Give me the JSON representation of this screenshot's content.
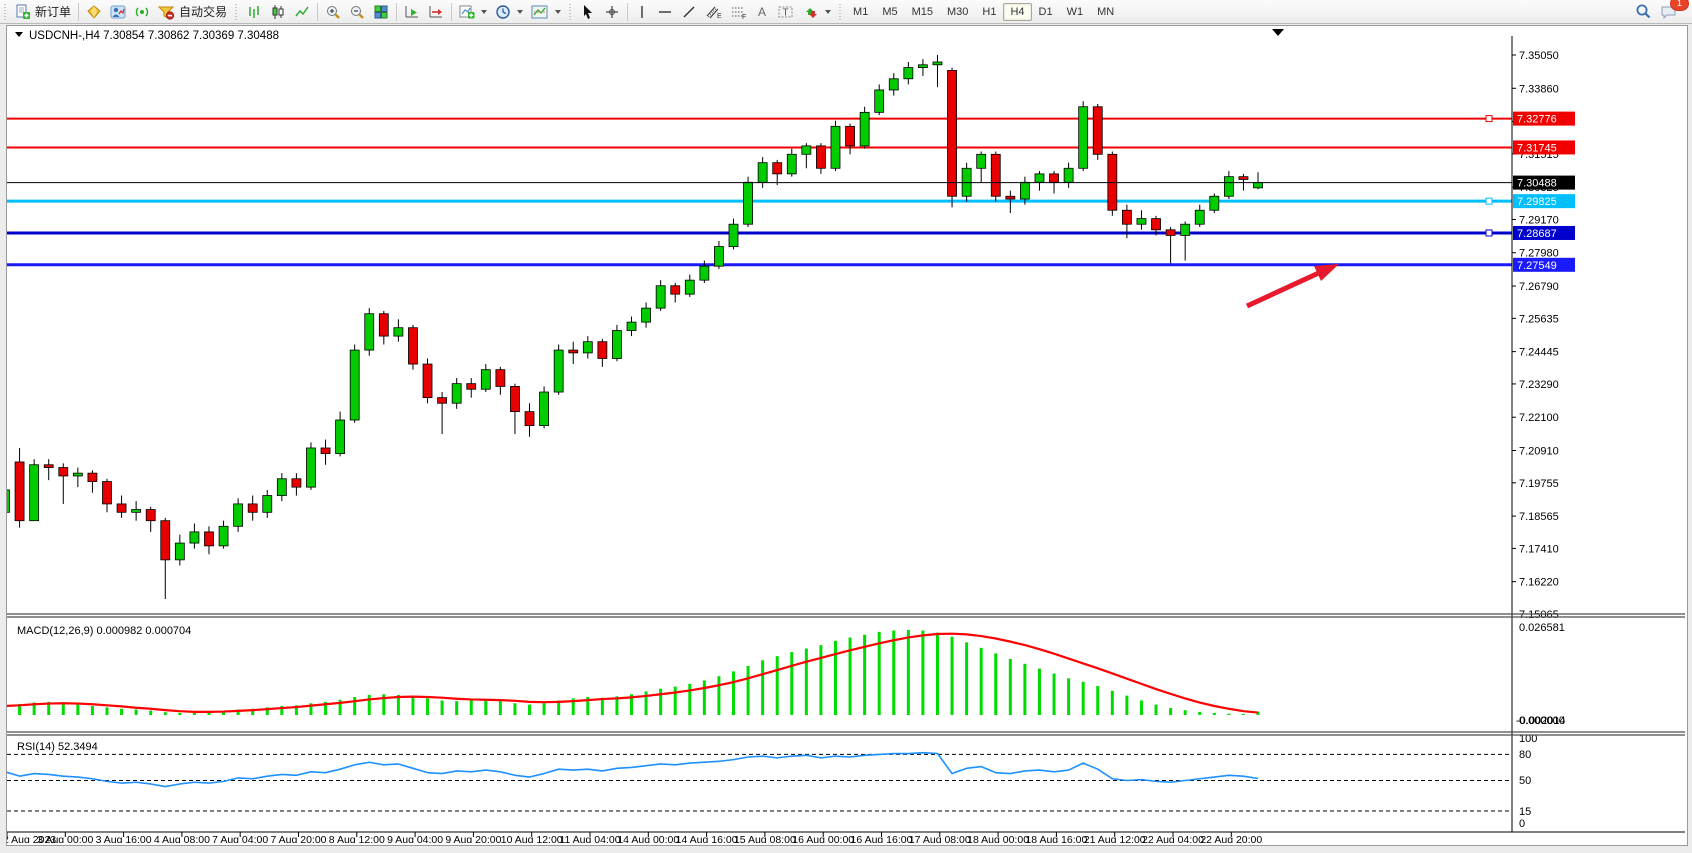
{
  "toolbar": {
    "new_order_label": "新订单",
    "auto_trading_label": "自动交易",
    "timeframes": [
      "M1",
      "M5",
      "M15",
      "M30",
      "H1",
      "H4",
      "D1",
      "W1",
      "MN"
    ],
    "active_timeframe": "H4",
    "notification_count": "1"
  },
  "chart": {
    "title_symbol": "USDCNH-,H4",
    "title_ohlc": "7.30854 7.30862 7.30369 7.30488",
    "current_price": {
      "label": "7.30488",
      "price": 7.30488,
      "color": "#000000"
    },
    "price_axis_ticks": [
      "7.35050",
      "7.33860",
      "7.32670",
      "7.31515",
      "7.30325",
      "7.29170",
      "7.27980",
      "7.26790",
      "7.25635",
      "7.24445",
      "7.23290",
      "7.22100",
      "7.20910",
      "7.19755",
      "7.18565",
      "7.17410",
      "7.16220",
      "7.15065"
    ],
    "hlines": [
      {
        "label": "7.32776",
        "price": 7.32776,
        "color": "#f00000",
        "width": 2,
        "handle": true
      },
      {
        "label": "7.31745",
        "price": 7.31745,
        "color": "#f00000",
        "width": 2,
        "handle": false
      },
      {
        "label": "7.29825",
        "price": 7.29825,
        "color": "#00bfff",
        "width": 3,
        "handle": true
      },
      {
        "label": "7.28687",
        "price": 7.28687,
        "color": "#0000cd",
        "width": 3,
        "handle": true
      },
      {
        "label": "7.27549",
        "price": 7.27549,
        "color": "#1a1aff",
        "width": 3,
        "handle": false
      }
    ],
    "annotations": [
      {
        "type": "arrow",
        "color": "#e8192c",
        "points_to": "7.27549"
      }
    ]
  },
  "macd": {
    "label": "MACD(12,26,9)",
    "value_main": "0.000982",
    "value_signal": "0.000704",
    "axis_max": "0.026581",
    "axis_zero": "0.000000",
    "axis_min": "-0.002014"
  },
  "rsi": {
    "label": "RSI(14)",
    "value": "52.3494",
    "axis_labels": [
      "100",
      "80",
      "50",
      "15",
      "0"
    ],
    "dashed_levels": [
      80,
      50,
      15
    ]
  },
  "time_axis": [
    "2 Aug 2023",
    "3 Aug 00:00",
    "3 Aug 16:00",
    "4 Aug 08:00",
    "7 Aug 04:00",
    "7 Aug 20:00",
    "8 Aug 12:00",
    "9 Aug 04:00",
    "9 Aug 20:00",
    "10 Aug 12:00",
    "11 Aug 04:00",
    "14 Aug 00:00",
    "14 Aug 16:00",
    "15 Aug 08:00",
    "16 Aug 00:00",
    "16 Aug 16:00",
    "17 Aug 08:00",
    "18 Aug 00:00",
    "18 Aug 16:00",
    "21 Aug 12:00",
    "22 Aug 04:00",
    "22 Aug 20:00"
  ],
  "chart_data": [
    {
      "type": "candlestick",
      "symbol": "USDCNH",
      "timeframe": "H4",
      "title": "USDCNH-,H4",
      "x_labels_every_n_bars": 4,
      "ylim": [
        7.15065,
        7.3505
      ],
      "ohlc": [
        [
          7.187,
          7.1975,
          7.178,
          7.195
        ],
        [
          7.205,
          7.21,
          7.1815,
          7.184
        ],
        [
          7.184,
          7.206,
          7.184,
          7.204
        ],
        [
          7.204,
          7.206,
          7.1985,
          7.203
        ],
        [
          7.203,
          7.2045,
          7.19,
          7.2
        ],
        [
          7.2,
          7.203,
          7.196,
          7.201
        ],
        [
          7.201,
          7.202,
          7.194,
          7.198
        ],
        [
          7.198,
          7.199,
          7.187,
          7.19
        ],
        [
          7.19,
          7.193,
          7.185,
          7.187
        ],
        [
          7.187,
          7.191,
          7.184,
          7.188
        ],
        [
          7.188,
          7.189,
          7.18,
          7.184
        ],
        [
          7.184,
          7.185,
          7.156,
          7.17
        ],
        [
          7.17,
          7.179,
          7.168,
          7.176
        ],
        [
          7.176,
          7.183,
          7.174,
          7.18
        ],
        [
          7.18,
          7.182,
          7.172,
          7.175
        ],
        [
          7.175,
          7.184,
          7.174,
          7.182
        ],
        [
          7.182,
          7.192,
          7.18,
          7.19
        ],
        [
          7.19,
          7.193,
          7.184,
          7.187
        ],
        [
          7.187,
          7.195,
          7.185,
          7.193
        ],
        [
          7.193,
          7.201,
          7.191,
          7.199
        ],
        [
          7.199,
          7.201,
          7.193,
          7.196
        ],
        [
          7.196,
          7.212,
          7.195,
          7.21
        ],
        [
          7.21,
          7.213,
          7.204,
          7.208
        ],
        [
          7.208,
          7.223,
          7.207,
          7.22
        ],
        [
          7.22,
          7.247,
          7.219,
          7.245
        ],
        [
          7.245,
          7.26,
          7.243,
          7.258
        ],
        [
          7.258,
          7.259,
          7.247,
          7.25
        ],
        [
          7.25,
          7.256,
          7.248,
          7.253
        ],
        [
          7.253,
          7.254,
          7.238,
          7.24
        ],
        [
          7.24,
          7.242,
          7.226,
          7.228
        ],
        [
          7.228,
          7.23,
          7.215,
          7.226
        ],
        [
          7.226,
          7.235,
          7.224,
          7.233
        ],
        [
          7.233,
          7.235,
          7.228,
          7.231
        ],
        [
          7.231,
          7.24,
          7.23,
          7.238
        ],
        [
          7.238,
          7.239,
          7.229,
          7.232
        ],
        [
          7.232,
          7.233,
          7.215,
          7.223
        ],
        [
          7.223,
          7.226,
          7.214,
          7.218
        ],
        [
          7.218,
          7.232,
          7.217,
          7.23
        ],
        [
          7.23,
          7.247,
          7.229,
          7.245
        ],
        [
          7.245,
          7.248,
          7.24,
          7.244
        ],
        [
          7.244,
          7.25,
          7.242,
          7.248
        ],
        [
          7.248,
          7.249,
          7.239,
          7.242
        ],
        [
          7.242,
          7.254,
          7.241,
          7.252
        ],
        [
          7.252,
          7.257,
          7.25,
          7.255
        ],
        [
          7.255,
          7.262,
          7.253,
          7.26
        ],
        [
          7.26,
          7.27,
          7.259,
          7.268
        ],
        [
          7.268,
          7.269,
          7.262,
          7.265
        ],
        [
          7.265,
          7.272,
          7.264,
          7.27
        ],
        [
          7.27,
          7.277,
          7.269,
          7.275
        ],
        [
          7.275,
          7.284,
          7.274,
          7.282
        ],
        [
          7.282,
          7.292,
          7.281,
          7.29
        ],
        [
          7.29,
          7.307,
          7.289,
          7.305
        ],
        [
          7.305,
          7.314,
          7.303,
          7.312
        ],
        [
          7.312,
          7.313,
          7.304,
          7.308
        ],
        [
          7.308,
          7.317,
          7.307,
          7.315
        ],
        [
          7.315,
          7.319,
          7.31,
          7.318
        ],
        [
          7.318,
          7.319,
          7.308,
          7.31
        ],
        [
          7.31,
          7.327,
          7.309,
          7.325
        ],
        [
          7.325,
          7.326,
          7.315,
          7.318
        ],
        [
          7.318,
          7.332,
          7.317,
          7.33
        ],
        [
          7.33,
          7.34,
          7.329,
          7.338
        ],
        [
          7.338,
          7.344,
          7.336,
          7.342
        ],
        [
          7.342,
          7.348,
          7.34,
          7.346
        ],
        [
          7.346,
          7.349,
          7.343,
          7.347
        ],
        [
          7.347,
          7.3505,
          7.339,
          7.348
        ],
        [
          7.345,
          7.346,
          7.296,
          7.3
        ],
        [
          7.3,
          7.312,
          7.298,
          7.31
        ],
        [
          7.31,
          7.316,
          7.305,
          7.315
        ],
        [
          7.315,
          7.316,
          7.298,
          7.3
        ],
        [
          7.3,
          7.302,
          7.294,
          7.299
        ],
        [
          7.299,
          7.307,
          7.297,
          7.305
        ],
        [
          7.305,
          7.309,
          7.302,
          7.308
        ],
        [
          7.308,
          7.309,
          7.301,
          7.305
        ],
        [
          7.305,
          7.312,
          7.303,
          7.31
        ],
        [
          7.31,
          7.334,
          7.309,
          7.332
        ],
        [
          7.332,
          7.333,
          7.313,
          7.315
        ],
        [
          7.315,
          7.316,
          7.293,
          7.295
        ],
        [
          7.295,
          7.297,
          7.285,
          7.29
        ],
        [
          7.29,
          7.295,
          7.288,
          7.292
        ],
        [
          7.292,
          7.293,
          7.286,
          7.288
        ],
        [
          7.288,
          7.289,
          7.276,
          7.286
        ],
        [
          7.286,
          7.291,
          7.277,
          7.29
        ],
        [
          7.29,
          7.297,
          7.289,
          7.295
        ],
        [
          7.295,
          7.301,
          7.294,
          7.3
        ],
        [
          7.3,
          7.309,
          7.299,
          7.307
        ],
        [
          7.307,
          7.308,
          7.302,
          7.306
        ],
        [
          7.303,
          7.3086,
          7.3025,
          7.3049
        ]
      ],
      "up_color": "#00cc00",
      "down_color": "#e80000"
    },
    {
      "type": "bar",
      "name": "MACD histogram",
      "color": "#00dc00",
      "ylim": [
        -0.002014,
        0.026581
      ],
      "values": [
        0.0028,
        0.0032,
        0.0036,
        0.0038,
        0.0035,
        0.003,
        0.0026,
        0.0022,
        0.0018,
        0.0016,
        0.0013,
        0.0008,
        0.0006,
        0.0007,
        0.0009,
        0.0012,
        0.0016,
        0.0018,
        0.0022,
        0.0026,
        0.0028,
        0.0034,
        0.0038,
        0.0044,
        0.0052,
        0.0058,
        0.006,
        0.0058,
        0.0054,
        0.0048,
        0.0042,
        0.004,
        0.0042,
        0.0044,
        0.004,
        0.0034,
        0.003,
        0.0034,
        0.0042,
        0.0048,
        0.0052,
        0.005,
        0.0054,
        0.006,
        0.0068,
        0.0076,
        0.0082,
        0.009,
        0.01,
        0.0112,
        0.0126,
        0.0142,
        0.0158,
        0.017,
        0.0182,
        0.0192,
        0.0202,
        0.0214,
        0.0224,
        0.0232,
        0.024,
        0.0244,
        0.0246,
        0.0244,
        0.0238,
        0.0226,
        0.021,
        0.0194,
        0.0178,
        0.0162,
        0.0148,
        0.0134,
        0.012,
        0.0106,
        0.0096,
        0.0084,
        0.007,
        0.0056,
        0.0042,
        0.003,
        0.002,
        0.0014,
        0.0009,
        0.0006,
        0.0004,
        0.0003,
        0.001
      ]
    },
    {
      "type": "line",
      "name": "MACD signal",
      "color": "#ff0000",
      "values": [
        0.0026,
        0.0028,
        0.0031,
        0.0033,
        0.0034,
        0.0033,
        0.0031,
        0.0028,
        0.0025,
        0.0021,
        0.0018,
        0.0014,
        0.0011,
        0.0009,
        0.0009,
        0.001,
        0.0012,
        0.0014,
        0.0017,
        0.002,
        0.0023,
        0.0027,
        0.0031,
        0.0035,
        0.004,
        0.0045,
        0.0049,
        0.0052,
        0.0053,
        0.0052,
        0.005,
        0.0047,
        0.0045,
        0.0044,
        0.0043,
        0.0041,
        0.0038,
        0.0037,
        0.0038,
        0.004,
        0.0043,
        0.0046,
        0.0048,
        0.0051,
        0.0055,
        0.006,
        0.0065,
        0.0071,
        0.0078,
        0.0086,
        0.0095,
        0.0106,
        0.0118,
        0.013,
        0.0142,
        0.0154,
        0.0165,
        0.0176,
        0.0187,
        0.0197,
        0.0207,
        0.0216,
        0.0224,
        0.023,
        0.0234,
        0.0235,
        0.0233,
        0.0228,
        0.0221,
        0.0212,
        0.0202,
        0.019,
        0.0177,
        0.0163,
        0.0149,
        0.0135,
        0.012,
        0.0105,
        0.009,
        0.0075,
        0.0061,
        0.0048,
        0.0036,
        0.0026,
        0.0018,
        0.0011,
        0.0007
      ]
    },
    {
      "type": "line",
      "name": "RSI",
      "color": "#1e90ff",
      "ylim": [
        0,
        100
      ],
      "values": [
        60,
        55,
        58,
        57,
        55,
        54,
        52,
        49,
        47,
        48,
        46,
        43,
        46,
        48,
        47,
        49,
        53,
        52,
        55,
        57,
        56,
        60,
        59,
        63,
        68,
        71,
        68,
        69,
        64,
        59,
        58,
        61,
        60,
        62,
        60,
        56,
        54,
        58,
        63,
        62,
        63,
        61,
        64,
        65,
        67,
        69,
        68,
        70,
        71,
        72,
        74,
        77,
        78,
        76,
        78,
        79,
        76,
        78,
        77,
        79,
        80,
        81,
        81,
        82,
        81,
        58,
        64,
        66,
        59,
        58,
        61,
        62,
        60,
        62,
        70,
        63,
        52,
        50,
        51,
        49,
        48,
        50,
        52,
        54,
        56,
        55,
        52.3
      ]
    }
  ]
}
